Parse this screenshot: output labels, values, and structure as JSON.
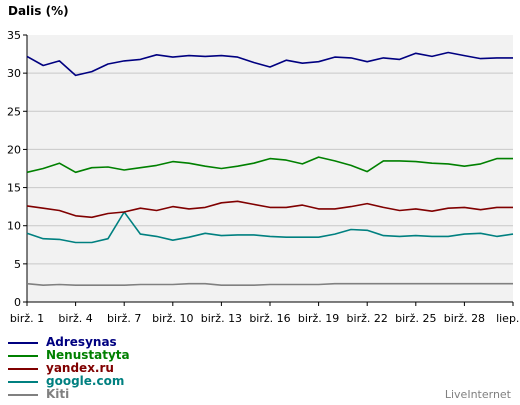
{
  "chart_data": {
    "type": "line",
    "title": "Dalis (%)",
    "ylim": [
      0,
      35
    ],
    "yticks": [
      0,
      5,
      10,
      15,
      20,
      25,
      30,
      35
    ],
    "grid": true,
    "legend_position": "bottom-left",
    "x": [
      "birž. 1",
      "birž. 2",
      "birž. 3",
      "birž. 4",
      "birž. 5",
      "birž. 6",
      "birž. 7",
      "birž. 8",
      "birž. 9",
      "birž. 10",
      "birž. 11",
      "birž. 12",
      "birž. 13",
      "birž. 14",
      "birž. 15",
      "birž. 16",
      "birž. 17",
      "birž. 18",
      "birž. 19",
      "birž. 20",
      "birž. 21",
      "birž. 22",
      "birž. 23",
      "birž. 24",
      "birž. 25",
      "birž. 26",
      "birž. 27",
      "birž. 28",
      "birž. 29",
      "birž. 30",
      "liep. 1"
    ],
    "xtick_labels": [
      "birž. 1",
      "birž. 4",
      "birž. 7",
      "birž. 10",
      "birž. 13",
      "birž. 16",
      "birž. 19",
      "birž. 22",
      "birž. 25",
      "birž. 28",
      "liep. 1"
    ],
    "series": [
      {
        "name": "Adresynas",
        "color": "#000080",
        "values": [
          32.2,
          31.0,
          31.6,
          29.7,
          30.2,
          31.2,
          31.6,
          31.8,
          32.4,
          32.1,
          32.3,
          32.2,
          32.3,
          32.1,
          31.4,
          30.8,
          31.7,
          31.3,
          31.5,
          32.1,
          32.0,
          31.5,
          32.0,
          31.8,
          32.6,
          32.2,
          32.7,
          32.3,
          31.9,
          32.0,
          32.0
        ]
      },
      {
        "name": "Nenustatyta",
        "color": "#008000",
        "values": [
          17.0,
          17.5,
          18.2,
          17.0,
          17.6,
          17.7,
          17.3,
          17.6,
          17.9,
          18.4,
          18.2,
          17.8,
          17.5,
          17.8,
          18.2,
          18.8,
          18.6,
          18.1,
          19.0,
          18.5,
          17.9,
          17.1,
          18.5,
          18.5,
          18.4,
          18.2,
          18.1,
          17.8,
          18.1,
          18.8,
          18.8
        ]
      },
      {
        "name": "yandex.ru",
        "color": "#800000",
        "values": [
          12.6,
          12.3,
          12.0,
          11.3,
          11.1,
          11.6,
          11.8,
          12.3,
          12.0,
          12.5,
          12.2,
          12.4,
          13.0,
          13.2,
          12.8,
          12.4,
          12.4,
          12.7,
          12.2,
          12.2,
          12.5,
          12.9,
          12.4,
          12.0,
          12.2,
          11.9,
          12.3,
          12.4,
          12.1,
          12.4,
          12.4
        ]
      },
      {
        "name": "google.com",
        "color": "#008080",
        "values": [
          9.0,
          8.3,
          8.2,
          7.8,
          7.8,
          8.3,
          11.8,
          8.9,
          8.6,
          8.1,
          8.5,
          9.0,
          8.7,
          8.8,
          8.8,
          8.6,
          8.5,
          8.5,
          8.5,
          8.9,
          9.5,
          9.4,
          8.7,
          8.6,
          8.7,
          8.6,
          8.6,
          8.9,
          9.0,
          8.6,
          8.9
        ]
      },
      {
        "name": "Kiti",
        "color": "#808080",
        "values": [
          2.4,
          2.2,
          2.3,
          2.2,
          2.2,
          2.2,
          2.2,
          2.3,
          2.3,
          2.3,
          2.4,
          2.4,
          2.2,
          2.2,
          2.2,
          2.3,
          2.3,
          2.3,
          2.3,
          2.4,
          2.4,
          2.4,
          2.4,
          2.4,
          2.4,
          2.4,
          2.4,
          2.4,
          2.4,
          2.4,
          2.4
        ]
      }
    ]
  },
  "brand": "LiveInternet"
}
